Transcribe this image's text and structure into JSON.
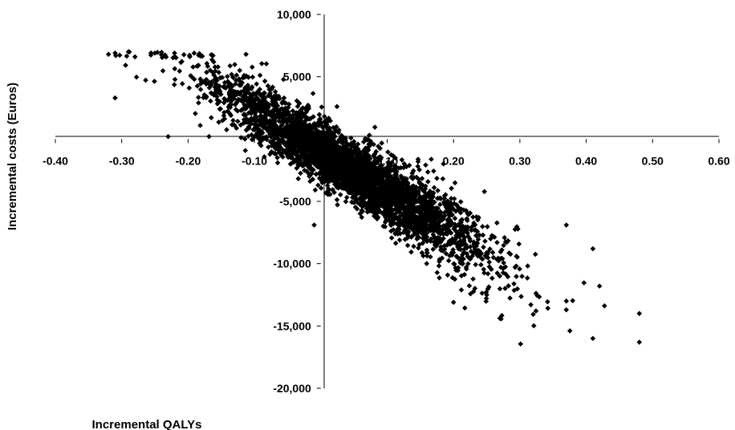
{
  "chart_data": {
    "type": "scatter",
    "title": "",
    "xlabel": "Incremental QALYs",
    "ylabel": "Incremental costs (Euros)",
    "xlim": [
      -0.4,
      0.6
    ],
    "ylim": [
      -20000,
      10000
    ],
    "x_ticks": [
      "-0.40",
      "-0.30",
      "-0.20",
      "-0.10",
      "0.00",
      "0.10",
      "0.20",
      "0.30",
      "0.40",
      "0.50",
      "0.60"
    ],
    "y_ticks": [
      "10,000",
      "5,000",
      "0",
      "-5,000",
      "-10,000",
      "-15,000",
      "-20,000"
    ],
    "marker": "diamond",
    "marker_color": "#000000",
    "grid": false,
    "legend": "none",
    "point_count_shown": 4000,
    "trend": {
      "description": "cloud of bootstrap replicates along a negative slope",
      "slope_cost_per_qaly": -33000,
      "intercept": -1000
    },
    "outliers": [
      {
        "x": -0.32,
        "y": 6800
      },
      {
        "x": -0.31,
        "y": 6900
      },
      {
        "x": -0.29,
        "y": 7000
      },
      {
        "x": -0.28,
        "y": 6600
      },
      {
        "x": -0.25,
        "y": 6900
      },
      {
        "x": -0.31,
        "y": 3300
      },
      {
        "x": -0.23,
        "y": 200
      },
      {
        "x": -0.01,
        "y": -6900
      },
      {
        "x": 0.2,
        "y": -13100
      },
      {
        "x": 0.25,
        "y": -12500
      },
      {
        "x": 0.37,
        "y": -13000
      },
      {
        "x": 0.37,
        "y": -13700
      },
      {
        "x": 0.41,
        "y": -16000
      },
      {
        "x": 0.48,
        "y": -14000
      },
      {
        "x": 0.48,
        "y": -16300
      },
      {
        "x": 0.42,
        "y": -11800
      },
      {
        "x": 0.41,
        "y": -8800
      },
      {
        "x": 0.37,
        "y": -6900
      }
    ],
    "x_tick_values": [
      -0.4,
      -0.3,
      -0.2,
      -0.1,
      0,
      0.1,
      0.2,
      0.3,
      0.4,
      0.5,
      0.6
    ],
    "y_tick_values": [
      10000,
      5000,
      0,
      -5000,
      -10000,
      -15000,
      -20000
    ]
  }
}
